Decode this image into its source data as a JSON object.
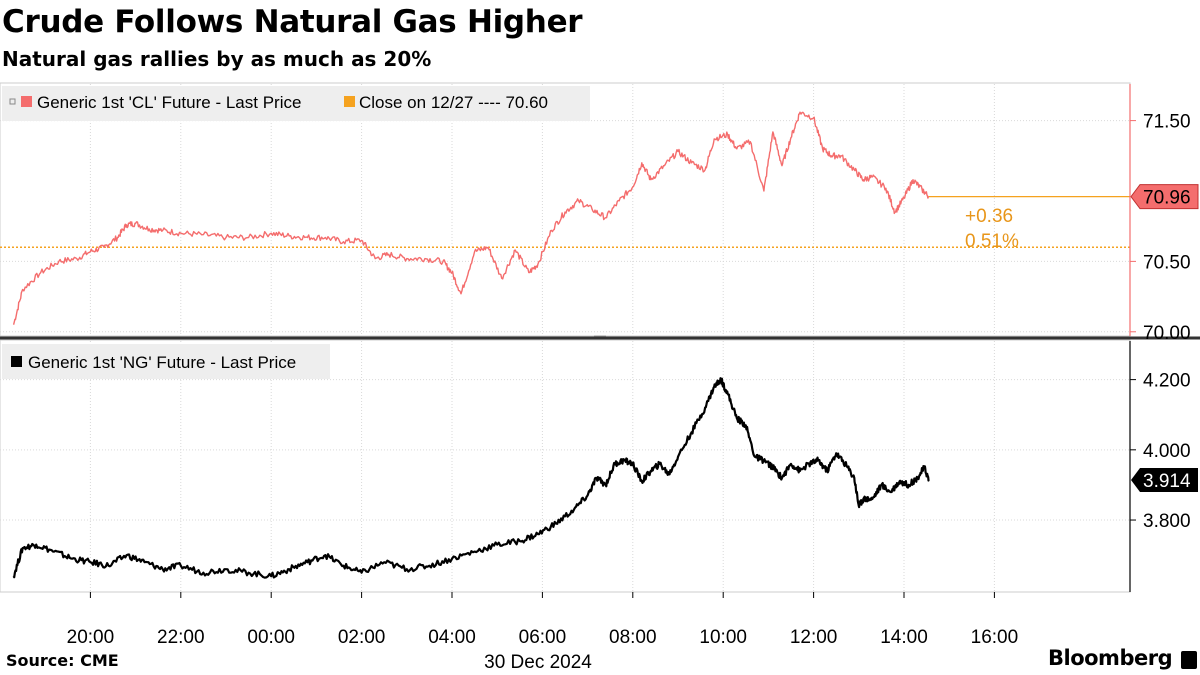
{
  "title": "Crude Follows Natural Gas Higher",
  "subtitle": "Natural gas rallies by as much as 20%",
  "source": "Source: CME",
  "brand": "Bloomberg",
  "colors": {
    "cl": "#f46d6d",
    "ng": "#000000",
    "close": "#f5a21f",
    "grid": "#cccccc"
  },
  "chart_data": [
    {
      "type": "line",
      "legend": [
        {
          "label": "Generic 1st 'CL' Future - Last Price",
          "color": "#f46d6d"
        },
        {
          "label": "Close on 12/27 ---- 70.60",
          "color": "#f5a21f"
        }
      ],
      "ylim": [
        69.97,
        71.76
      ],
      "yticks": [
        "70.00",
        "70.50",
        "71.50"
      ],
      "reference_line": {
        "label": "Close on 12/27",
        "value": 70.6
      },
      "last_value": "70.96",
      "change": "+0.36",
      "change_pct": "0.51%",
      "series": [
        {
          "name": "Generic 1st 'CL' Future - Last Price",
          "x": [
            18.3,
            18.5,
            18.9,
            19.3,
            19.7,
            20.0,
            20.3,
            20.6,
            20.8,
            21.0,
            21.3,
            21.6,
            22.0,
            22.5,
            23.0,
            23.5,
            0.0,
            0.4,
            0.8,
            1.2,
            1.6,
            2.0,
            2.3,
            2.6,
            3.0,
            3.4,
            3.8,
            4.0,
            4.2,
            4.5,
            4.8,
            5.1,
            5.4,
            5.7,
            5.9,
            6.2,
            6.5,
            6.8,
            7.1,
            7.4,
            7.7,
            8.0,
            8.2,
            8.4,
            8.7,
            9.0,
            9.3,
            9.6,
            9.8,
            10.1,
            10.3,
            10.6,
            10.9,
            11.1,
            11.3,
            11.5,
            11.7,
            12.0,
            12.2,
            12.4,
            12.6,
            12.9,
            13.1,
            13.3,
            13.6,
            13.8,
            14.0,
            14.2,
            14.4,
            14.55
          ],
          "y": [
            70.05,
            70.3,
            70.42,
            70.5,
            70.52,
            70.57,
            70.6,
            70.67,
            70.76,
            70.77,
            70.73,
            70.72,
            70.7,
            70.69,
            70.67,
            70.67,
            70.7,
            70.68,
            70.67,
            70.67,
            70.64,
            70.65,
            70.52,
            70.55,
            70.52,
            70.52,
            70.5,
            70.42,
            70.27,
            70.57,
            70.6,
            70.38,
            70.58,
            70.42,
            70.48,
            70.72,
            70.85,
            70.93,
            70.87,
            70.81,
            70.93,
            71.03,
            71.2,
            71.08,
            71.18,
            71.28,
            71.2,
            71.15,
            71.37,
            71.4,
            71.3,
            71.35,
            71.0,
            71.42,
            71.18,
            71.38,
            71.56,
            71.52,
            71.3,
            71.25,
            71.25,
            71.15,
            71.08,
            71.1,
            71.02,
            70.85,
            70.95,
            71.08,
            71.01,
            70.96
          ]
        }
      ]
    },
    {
      "type": "line",
      "legend": [
        {
          "label": "Generic 1st 'NG' Future - Last Price",
          "color": "#000000"
        }
      ],
      "ylim": [
        3.595,
        4.31
      ],
      "yticks": [
        "3.800",
        "4.000",
        "4.200"
      ],
      "last_value": "3.914",
      "series": [
        {
          "name": "Generic 1st 'NG' Future - Last Price",
          "x": [
            18.3,
            18.5,
            18.8,
            19.2,
            19.6,
            20.0,
            20.4,
            20.8,
            21.2,
            21.6,
            22.0,
            22.5,
            23.0,
            23.5,
            0.0,
            0.4,
            0.8,
            1.2,
            1.6,
            2.0,
            2.5,
            3.0,
            3.5,
            4.0,
            4.5,
            5.0,
            5.5,
            5.9,
            6.3,
            6.7,
            7.0,
            7.2,
            7.4,
            7.6,
            7.8,
            8.0,
            8.2,
            8.4,
            8.6,
            8.8,
            9.0,
            9.3,
            9.6,
            9.8,
            9.95,
            10.1,
            10.3,
            10.5,
            10.7,
            10.9,
            11.1,
            11.3,
            11.5,
            11.7,
            11.9,
            12.1,
            12.3,
            12.5,
            12.7,
            12.9,
            13.0,
            13.1,
            13.3,
            13.5,
            13.7,
            13.9,
            14.1,
            14.3,
            14.45,
            14.55
          ],
          "y": [
            3.64,
            3.72,
            3.73,
            3.71,
            3.69,
            3.68,
            3.67,
            3.7,
            3.68,
            3.66,
            3.67,
            3.65,
            3.66,
            3.65,
            3.64,
            3.66,
            3.68,
            3.7,
            3.67,
            3.65,
            3.68,
            3.66,
            3.67,
            3.69,
            3.71,
            3.73,
            3.74,
            3.76,
            3.79,
            3.83,
            3.87,
            3.92,
            3.9,
            3.96,
            3.97,
            3.96,
            3.91,
            3.94,
            3.96,
            3.93,
            3.98,
            4.05,
            4.12,
            4.18,
            4.2,
            4.16,
            4.09,
            4.07,
            3.98,
            3.97,
            3.95,
            3.92,
            3.96,
            3.94,
            3.96,
            3.97,
            3.94,
            3.99,
            3.96,
            3.92,
            3.84,
            3.86,
            3.86,
            3.9,
            3.88,
            3.91,
            3.9,
            3.92,
            3.95,
            3.914
          ]
        }
      ]
    }
  ],
  "x_axis": {
    "ticks": [
      "20:00",
      "22:00",
      "00:00",
      "02:00",
      "04:00",
      "06:00",
      "08:00",
      "10:00",
      "12:00",
      "14:00",
      "16:00"
    ],
    "tick_hours": [
      20,
      22,
      24,
      26,
      28,
      30,
      32,
      34,
      36,
      38,
      40
    ],
    "range_hours": [
      18.0,
      43.0
    ],
    "date_label": "30 Dec 2024"
  }
}
